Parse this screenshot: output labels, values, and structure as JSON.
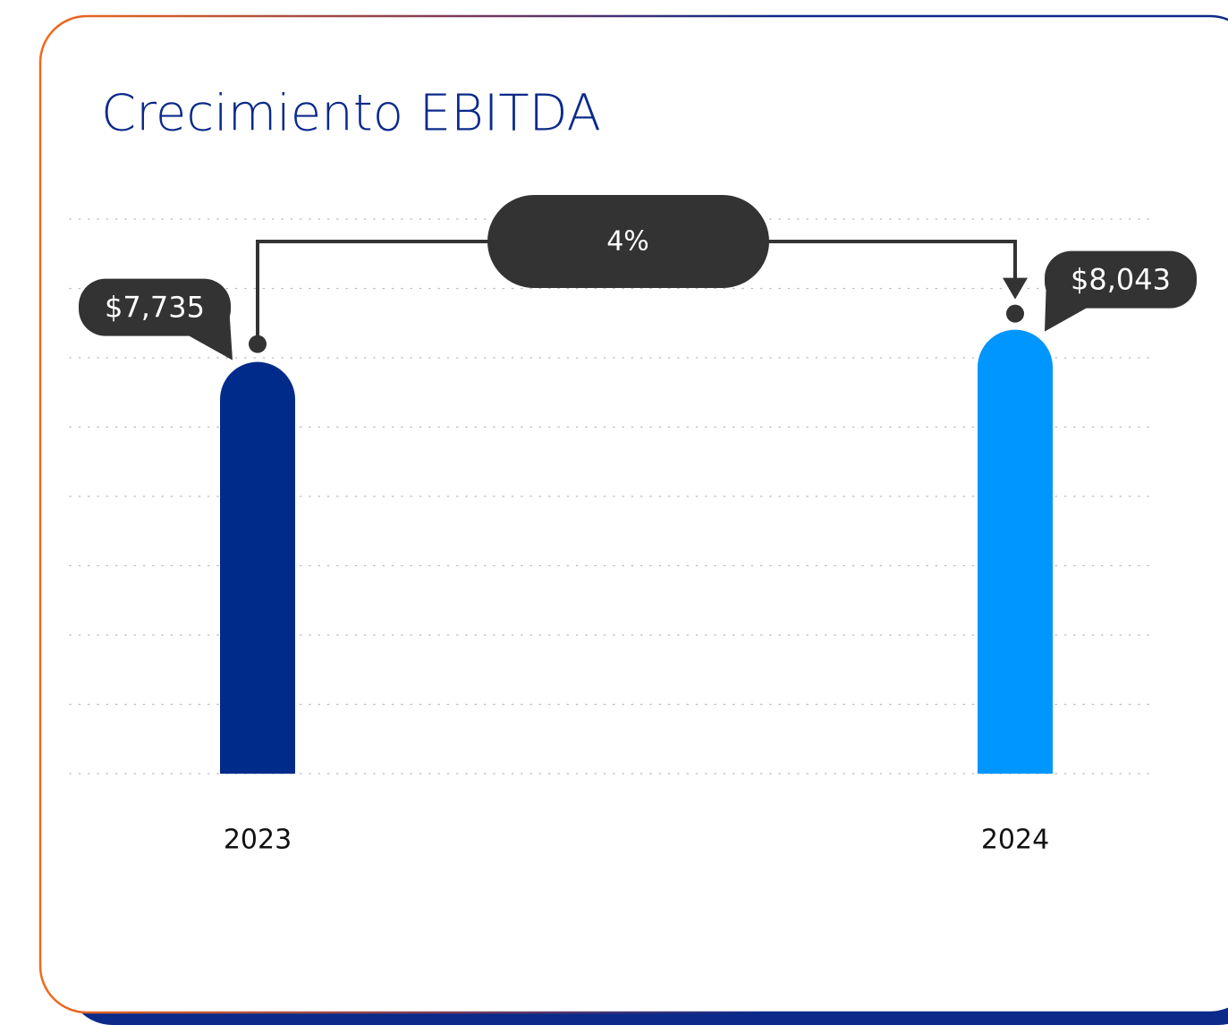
{
  "chart_data": {
    "type": "bar",
    "title": "Crecimiento EBITDA",
    "categories": [
      "2023",
      "2024"
    ],
    "values": [
      7735,
      8043
    ],
    "value_labels": [
      "$7,735",
      "$8,043"
    ],
    "colors": [
      "#002b8a",
      "#0096ff"
    ],
    "annotation": "4%",
    "ylim": [
      3800,
      9100
    ]
  }
}
